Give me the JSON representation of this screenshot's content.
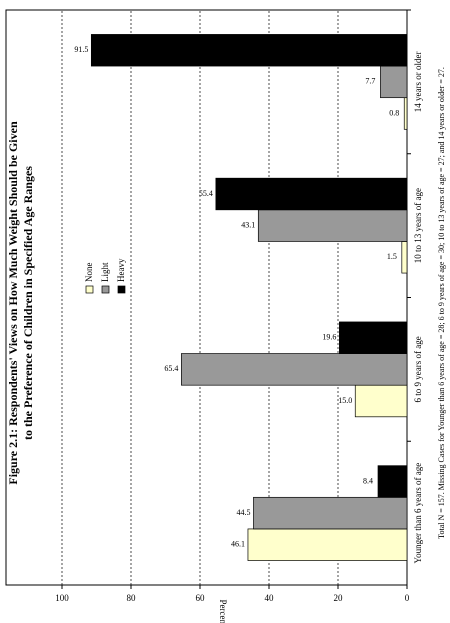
{
  "chart_data": {
    "type": "bar",
    "title": [
      "Figure 2.1: Respondents' Views on How Much Weight Should be Given",
      "to the Preference of Children in Specified Age Ranges"
    ],
    "y_label": "Percent",
    "categories": [
      "Younger than 6 years of age",
      "6 to 9 years of age",
      "10 to 13 years of age",
      "14 years or older"
    ],
    "series": [
      {
        "name": "None",
        "color": "#ffffcc",
        "values": [
          46.1,
          15.0,
          1.5,
          0.8
        ],
        "value_labels": [
          "46.1",
          "15.0",
          "1.5",
          "0.8"
        ]
      },
      {
        "name": "Light",
        "color": "#999999",
        "values": [
          44.5,
          65.4,
          43.1,
          7.7
        ],
        "value_labels": [
          "44.5",
          "65.4",
          "43.1",
          "7.7"
        ]
      },
      {
        "name": "Heavy",
        "color": "#000000",
        "values": [
          8.4,
          19.6,
          55.4,
          91.5
        ],
        "value_labels": [
          "8.4",
          "19.6",
          "55.4",
          "91.5"
        ]
      }
    ],
    "ylim": [
      0,
      100
    ],
    "yticks": [
      0,
      20,
      40,
      60,
      80,
      100
    ],
    "grid": true,
    "footnote": "Total N = 157.  Missing Cases for Younger than 6 years of age = 28; 6 to 9 years of age = 30; 10 to 13 years of age = 27; and 14 years or older = 27."
  }
}
